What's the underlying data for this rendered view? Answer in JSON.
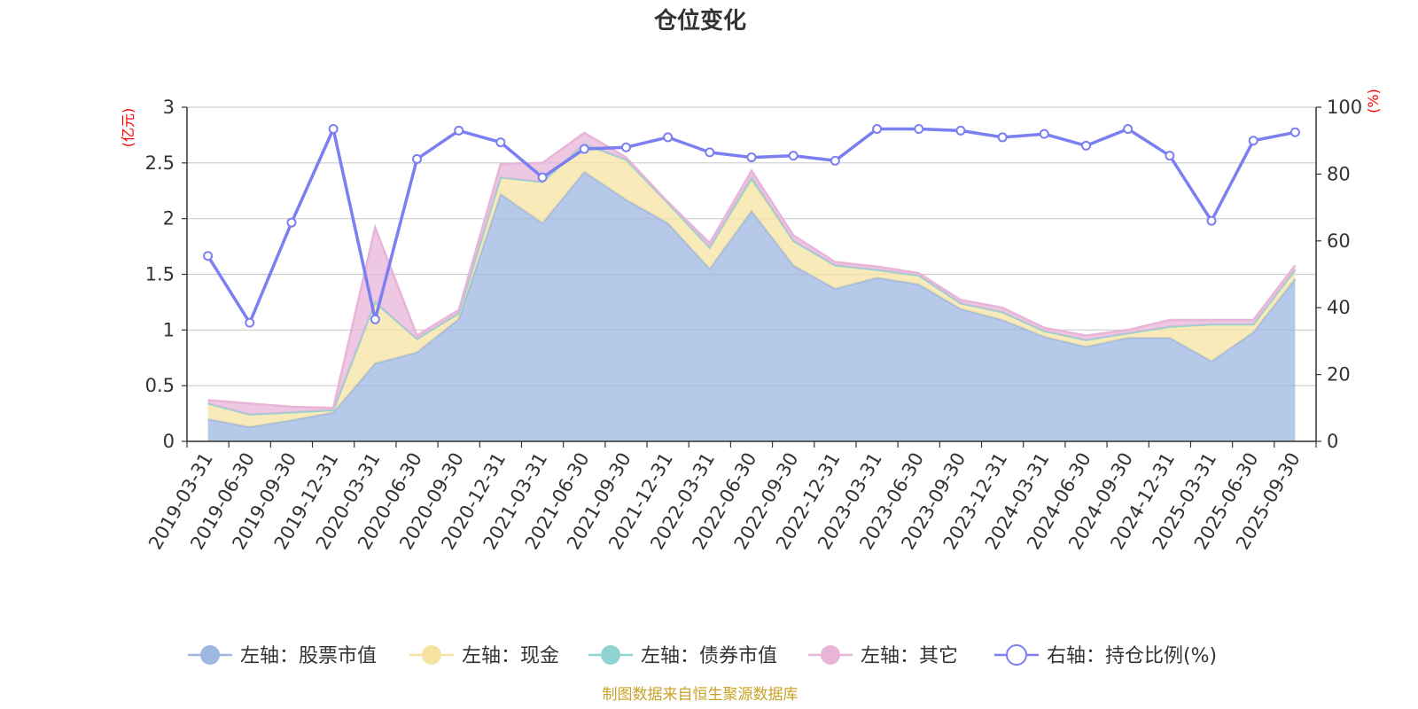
{
  "chart_data": {
    "type": "area",
    "title": "仓位变化",
    "source_note": "制图数据来自恒生聚源数据库",
    "left_axis": {
      "unit": "(亿元)",
      "ticks": [
        "0",
        "0.5",
        "1",
        "1.5",
        "2",
        "2.5",
        "3"
      ],
      "ylim": [
        0,
        3
      ]
    },
    "right_axis": {
      "unit": "(%)",
      "ticks": [
        "0",
        "20",
        "40",
        "60",
        "80",
        "100"
      ],
      "ylim": [
        0,
        100
      ]
    },
    "grid": true,
    "legend_position": "bottom",
    "categories": [
      "2019-03-31",
      "2019-06-30",
      "2019-09-30",
      "2019-12-31",
      "2020-03-31",
      "2020-06-30",
      "2020-09-30",
      "2020-12-31",
      "2021-03-31",
      "2021-06-30",
      "2021-09-30",
      "2021-12-31",
      "2022-03-31",
      "2022-06-30",
      "2022-09-30",
      "2022-12-31",
      "2023-03-31",
      "2023-06-30",
      "2023-09-30",
      "2023-12-31",
      "2024-03-31",
      "2024-06-30",
      "2024-09-30",
      "2024-12-31",
      "2025-03-31",
      "2025-06-30",
      "2025-09-30"
    ],
    "series": [
      {
        "name": "左轴：股票市值",
        "axis": "left",
        "stack": true,
        "color": "#9db7e0",
        "values": [
          0.2,
          0.13,
          0.19,
          0.26,
          0.7,
          0.8,
          1.1,
          2.22,
          1.96,
          2.42,
          2.17,
          1.96,
          1.55,
          2.07,
          1.58,
          1.37,
          1.47,
          1.41,
          1.19,
          1.09,
          0.94,
          0.85,
          0.93,
          0.93,
          0.72,
          0.98,
          1.46
        ]
      },
      {
        "name": "左轴：现金",
        "axis": "left",
        "stack": true,
        "color": "#f7e3a1",
        "values": [
          0.14,
          0.11,
          0.07,
          0.02,
          0.55,
          0.12,
          0.05,
          0.15,
          0.37,
          0.25,
          0.36,
          0.18,
          0.19,
          0.27,
          0.22,
          0.21,
          0.07,
          0.08,
          0.05,
          0.07,
          0.05,
          0.06,
          0.04,
          0.1,
          0.33,
          0.07,
          0.08
        ]
      },
      {
        "name": "左轴：债券市值",
        "axis": "left",
        "stack": true,
        "color": "#8fd4d2",
        "values": [
          0,
          0,
          0,
          0,
          0,
          0,
          0,
          0,
          0,
          0,
          0,
          0,
          0,
          0.03,
          0,
          0,
          0,
          0,
          0,
          0,
          0,
          0,
          0,
          0,
          0,
          0,
          0
        ]
      },
      {
        "name": "左轴：其它",
        "axis": "left",
        "stack": true,
        "color": "#e8b4d8",
        "values": [
          0.03,
          0.1,
          0.05,
          0.02,
          0.67,
          0.03,
          0.03,
          0.12,
          0.17,
          0.1,
          0.02,
          0.01,
          0.04,
          0.06,
          0.05,
          0.03,
          0.03,
          0.02,
          0.03,
          0.04,
          0.03,
          0.04,
          0.03,
          0.06,
          0.04,
          0.04,
          0.04
        ]
      },
      {
        "name": "右轴：持仓比例(%)",
        "axis": "right",
        "type": "line",
        "color": "#7b7ff0",
        "values": [
          55.5,
          35.5,
          65.5,
          93.5,
          36.5,
          84.5,
          93,
          89.5,
          79,
          87.5,
          88,
          91,
          86.5,
          85,
          85.5,
          84,
          93.5,
          93.5,
          93,
          91,
          92,
          88.5,
          93.5,
          85.5,
          66,
          90,
          92.5
        ]
      }
    ]
  }
}
